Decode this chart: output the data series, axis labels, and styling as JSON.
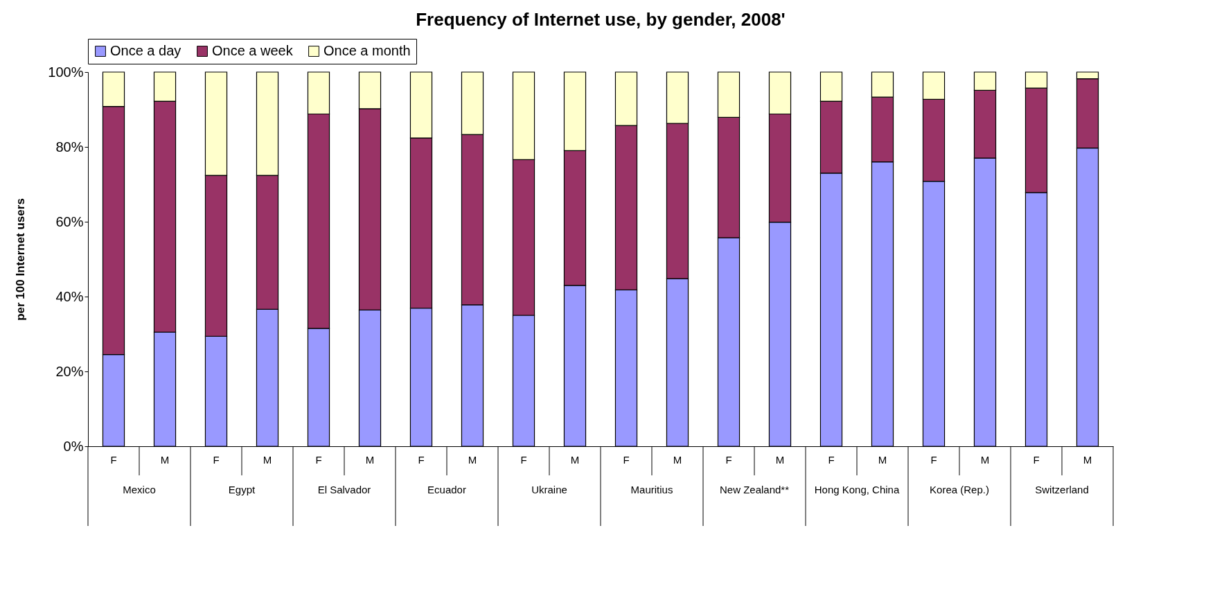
{
  "chart_data": {
    "type": "bar",
    "title": "Frequency of Internet use, by gender, 2008'",
    "ylabel": "per 100 Internet users",
    "categories": [
      "F",
      "M",
      "F",
      "M",
      "F",
      "M",
      "F",
      "M",
      "F",
      "M",
      "F",
      "M",
      "F",
      "M",
      "F",
      "M",
      "F",
      "M",
      "F",
      "M"
    ],
    "annotations": [
      "Mexico",
      "Egypt",
      "El Salvador",
      "Ecuador",
      "Ukraine",
      "Mauritius",
      "New Zealand**",
      "Hong Kong, China",
      "Korea (Rep.)",
      "Switzerland"
    ],
    "stacked": true,
    "series": [
      {
        "name": "Once a day",
        "color": "#9999ff",
        "values": [
          24.5,
          30.5,
          29.4,
          36.6,
          31.5,
          36.4,
          36.9,
          37.8,
          35.0,
          43.0,
          41.8,
          44.8,
          55.7,
          59.9,
          73.0,
          76.0,
          70.8,
          77.0,
          67.8,
          79.7
        ]
      },
      {
        "name": "Once a week",
        "color": "#993366",
        "values": [
          66.3,
          61.7,
          43.0,
          35.8,
          57.3,
          53.8,
          45.5,
          45.5,
          41.6,
          36.0,
          43.9,
          41.5,
          32.2,
          28.9,
          19.2,
          17.3,
          21.9,
          18.1,
          27.9,
          18.5
        ]
      },
      {
        "name": "Once a month",
        "color": "#ffffcc",
        "values": [
          9.2,
          7.8,
          27.6,
          27.6,
          11.2,
          9.8,
          17.6,
          16.7,
          23.4,
          21.0,
          14.3,
          13.7,
          12.1,
          11.2,
          7.8,
          6.7,
          7.3,
          4.9,
          4.3,
          1.8
        ]
      }
    ],
    "ylim": [
      0,
      100
    ],
    "yticks": [
      {
        "value": 0,
        "label": "0%"
      },
      {
        "value": 20,
        "label": "20%"
      },
      {
        "value": 40,
        "label": "40%"
      },
      {
        "value": 60,
        "label": "60%"
      },
      {
        "value": 80,
        "label": "80%"
      },
      {
        "value": 100,
        "label": "100%"
      }
    ],
    "grid": false,
    "legend": "top"
  }
}
